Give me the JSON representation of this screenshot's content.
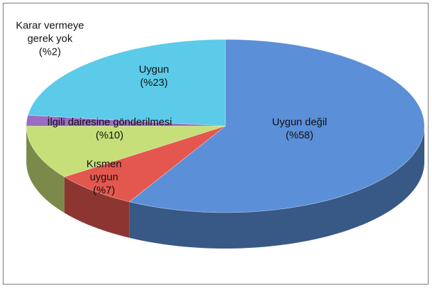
{
  "chart_data": {
    "type": "pie",
    "categories": [
      "Uygun değil",
      "Kısmen uygun",
      "İlgili dairesine gönderilmesi",
      "Karar vermeye gerek yok",
      "Uygun"
    ],
    "values": [
      58,
      7,
      10,
      2,
      23
    ],
    "value_labels": [
      "(%58)",
      "(%7)",
      "(%10)",
      "(%2)",
      "(%23)"
    ],
    "colors": [
      "#5b8fd8",
      "#e4574f",
      "#c6df78",
      "#9a6cc4",
      "#5ccae9"
    ]
  }
}
